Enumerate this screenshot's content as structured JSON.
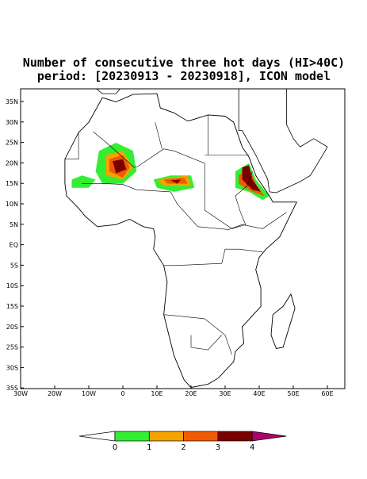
{
  "header": {
    "title": "Number of consecutive three hot days (HI>40C)",
    "subtitle": "period: [20230913 - 20230918], ICON model"
  },
  "map": {
    "lat_labels": [
      "35N",
      "30N",
      "25N",
      "20N",
      "15N",
      "10N",
      "5N",
      "EQ",
      "5S",
      "10S",
      "15S",
      "20S",
      "25S",
      "30S",
      "35S"
    ],
    "lon_labels": [
      "30W",
      "20W",
      "10W",
      "0",
      "10E",
      "20E",
      "30E",
      "40E",
      "50E",
      "60E"
    ]
  },
  "colorbar": {
    "ticks": [
      0,
      1,
      2,
      3,
      4
    ],
    "colors": [
      "#33ee33",
      "#f5a300",
      "#f05a00",
      "#7a0000"
    ],
    "under": "#ffffff",
    "over": "#b0006a"
  }
}
